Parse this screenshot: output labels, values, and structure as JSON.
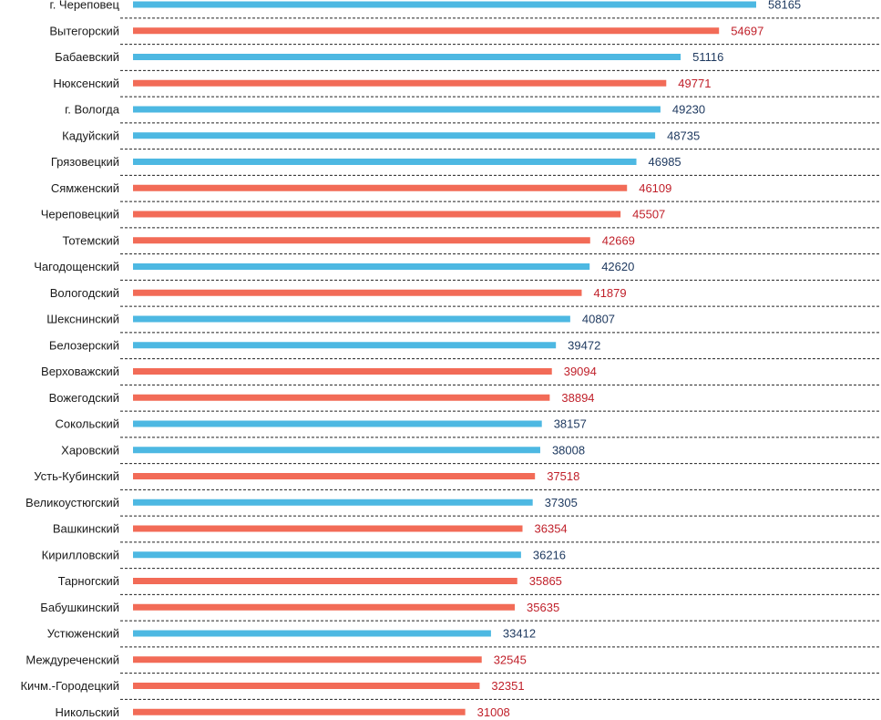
{
  "chart_data": {
    "type": "bar",
    "orientation": "horizontal",
    "title": "",
    "xlabel": "",
    "ylabel": "",
    "xlim": [
      0,
      58165
    ],
    "grid": false,
    "legend": "none",
    "colors": {
      "blue": "#4db8e2",
      "red": "#f26b57",
      "blue_text": "#1f3a60",
      "red_text": "#c0202a",
      "separator": "#222222"
    },
    "bars": [
      {
        "label": "г. Череповец",
        "value": 58165,
        "color": "blue"
      },
      {
        "label": "Вытегорский",
        "value": 54697,
        "color": "red"
      },
      {
        "label": "Бабаевский",
        "value": 51116,
        "color": "blue"
      },
      {
        "label": "Нюксенский",
        "value": 49771,
        "color": "red"
      },
      {
        "label": "г. Вологда",
        "value": 49230,
        "color": "blue"
      },
      {
        "label": "Кадуйский",
        "value": 48735,
        "color": "blue"
      },
      {
        "label": "Грязовецкий",
        "value": 46985,
        "color": "blue"
      },
      {
        "label": "Сямженский",
        "value": 46109,
        "color": "red"
      },
      {
        "label": "Череповецкий",
        "value": 45507,
        "color": "red"
      },
      {
        "label": "Тотемский",
        "value": 42669,
        "color": "red"
      },
      {
        "label": "Чагодощенский",
        "value": 42620,
        "color": "blue"
      },
      {
        "label": "Вологодский",
        "value": 41879,
        "color": "red"
      },
      {
        "label": "Шекснинский",
        "value": 40807,
        "color": "blue"
      },
      {
        "label": "Белозерский",
        "value": 39472,
        "color": "blue"
      },
      {
        "label": "Верховажский",
        "value": 39094,
        "color": "red"
      },
      {
        "label": "Вожегодский",
        "value": 38894,
        "color": "red"
      },
      {
        "label": "Сокольский",
        "value": 38157,
        "color": "blue"
      },
      {
        "label": "Харовский",
        "value": 38008,
        "color": "blue"
      },
      {
        "label": "Усть-Кубинский",
        "value": 37518,
        "color": "red"
      },
      {
        "label": "Великоустюгский",
        "value": 37305,
        "color": "blue"
      },
      {
        "label": "Вашкинский",
        "value": 36354,
        "color": "red"
      },
      {
        "label": "Кирилловский",
        "value": 36216,
        "color": "blue"
      },
      {
        "label": "Тарногский",
        "value": 35865,
        "color": "red"
      },
      {
        "label": "Бабушкинский",
        "value": 35635,
        "color": "red"
      },
      {
        "label": "Устюженский",
        "value": 33412,
        "color": "blue"
      },
      {
        "label": "Междуреченский",
        "value": 32545,
        "color": "red"
      },
      {
        "label": "Кичм.-Городецкий",
        "value": 32351,
        "color": "red"
      },
      {
        "label": "Никольский",
        "value": 31008,
        "color": "red"
      }
    ]
  }
}
